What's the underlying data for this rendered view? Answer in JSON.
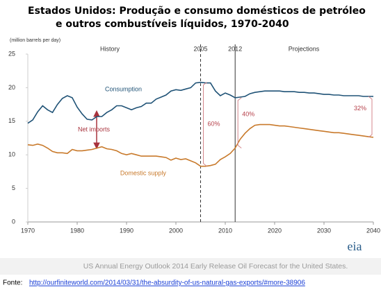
{
  "chart_data": {
    "type": "line",
    "title_lines": [
      "Estados Unidos: Produção e consumo domésticos de petróleo",
      "e outros combustíveis líquidos, 1970-2040"
    ],
    "y_label": "(million barrels per day)",
    "period_labels": [
      "History",
      "Projections"
    ],
    "net_imports_label": "Net imports",
    "x": [
      1970,
      1971,
      1972,
      1973,
      1974,
      1975,
      1976,
      1977,
      1978,
      1979,
      1980,
      1981,
      1982,
      1983,
      1984,
      1985,
      1986,
      1987,
      1988,
      1989,
      1990,
      1991,
      1992,
      1993,
      1994,
      1995,
      1996,
      1997,
      1998,
      1999,
      2000,
      2001,
      2002,
      2003,
      2004,
      2005,
      2006,
      2007,
      2008,
      2009,
      2010,
      2011,
      2012,
      2013,
      2014,
      2015,
      2016,
      2017,
      2018,
      2019,
      2020,
      2021,
      2022,
      2023,
      2024,
      2025,
      2026,
      2027,
      2028,
      2029,
      2030,
      2031,
      2032,
      2033,
      2034,
      2035,
      2036,
      2037,
      2038,
      2039,
      2040
    ],
    "series": [
      {
        "name": "Consumption",
        "color": "#1f5276",
        "values": [
          14.7,
          15.2,
          16.4,
          17.3,
          16.7,
          16.3,
          17.5,
          18.4,
          18.8,
          18.5,
          17.1,
          16.1,
          15.3,
          15.2,
          15.7,
          15.7,
          16.3,
          16.7,
          17.3,
          17.3,
          17.0,
          16.7,
          17.0,
          17.2,
          17.7,
          17.7,
          18.3,
          18.6,
          18.9,
          19.5,
          19.7,
          19.6,
          19.8,
          20.0,
          20.7,
          20.8,
          20.7,
          20.7,
          19.5,
          18.8,
          19.2,
          18.9,
          18.5,
          18.6,
          18.7,
          19.1,
          19.3,
          19.4,
          19.5,
          19.5,
          19.5,
          19.5,
          19.4,
          19.4,
          19.4,
          19.3,
          19.3,
          19.2,
          19.2,
          19.1,
          19.0,
          19.0,
          18.9,
          18.9,
          18.8,
          18.8,
          18.8,
          18.8,
          18.7,
          18.7,
          18.7
        ]
      },
      {
        "name": "Domestic supply",
        "color": "#c8792a",
        "values": [
          11.5,
          11.4,
          11.6,
          11.4,
          11.0,
          10.5,
          10.3,
          10.3,
          10.2,
          10.8,
          10.6,
          10.6,
          10.7,
          10.8,
          11.0,
          11.2,
          10.9,
          10.8,
          10.6,
          10.2,
          10.0,
          10.2,
          10.0,
          9.8,
          9.8,
          9.8,
          9.8,
          9.7,
          9.6,
          9.2,
          9.5,
          9.3,
          9.4,
          9.1,
          8.8,
          8.3,
          8.3,
          8.4,
          8.6,
          9.3,
          9.7,
          10.2,
          11.0,
          12.3,
          13.2,
          13.9,
          14.4,
          14.5,
          14.5,
          14.5,
          14.4,
          14.3,
          14.3,
          14.2,
          14.1,
          14.0,
          13.9,
          13.8,
          13.7,
          13.6,
          13.5,
          13.4,
          13.3,
          13.3,
          13.2,
          13.1,
          13.0,
          12.9,
          12.8,
          12.7,
          12.6
        ]
      }
    ],
    "vlines": [
      {
        "x": 2005,
        "style": "dashed"
      },
      {
        "x": 2012,
        "style": "solid"
      }
    ],
    "brackets": [
      {
        "x": 2005,
        "value": 60,
        "value_label": "60%"
      },
      {
        "x": 2012,
        "value": 40,
        "value_label": "40%"
      },
      {
        "x": 2040,
        "value": 32,
        "value_label": "32%"
      }
    ],
    "xlim": [
      1970,
      2040
    ],
    "xticks": [
      1970,
      1980,
      1990,
      2000,
      2010,
      2020,
      2030,
      2040
    ],
    "ylim": [
      0,
      25
    ],
    "yticks": [
      0,
      5,
      10,
      15,
      20,
      25
    ],
    "grid": false,
    "caption": "US Annual Energy Outlook 2014 Early Release Oil Forecast for the United States.",
    "logo": "eia",
    "source_prefix": "Fonte:",
    "source_url": "http://ourfiniteworld.com/2014/03/31/the-absurdity-of-us-natural-gas-exports/#more-38906"
  }
}
